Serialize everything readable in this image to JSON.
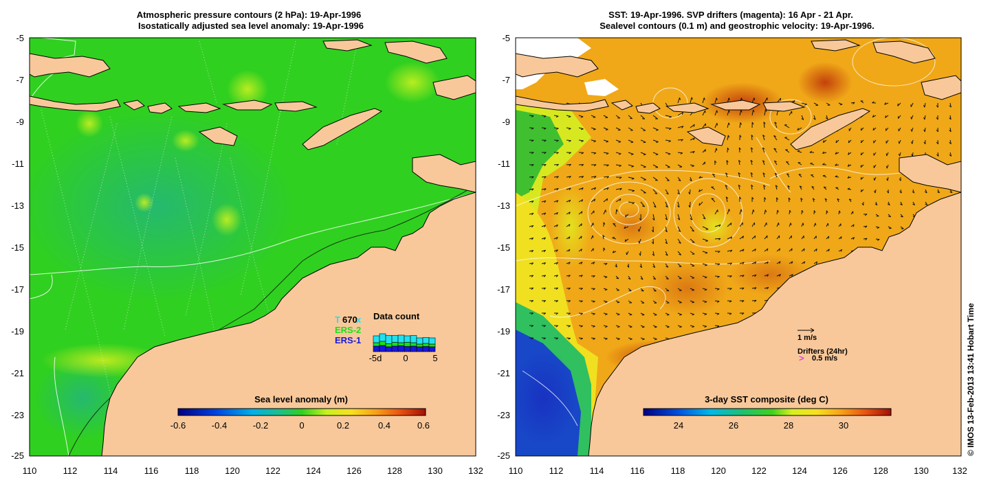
{
  "left_panel": {
    "title_line1": "Atmospheric pressure contours (2 hPa): 19-Apr-1996",
    "title_line2": "Isostatically adjusted sea level anomaly: 19-Apr-1996",
    "x_ticks": [
      "110",
      "112",
      "114",
      "116",
      "118",
      "120",
      "122",
      "124",
      "126",
      "128",
      "130",
      "132"
    ],
    "y_ticks": [
      "-5",
      "-7",
      "-9",
      "-11",
      "-13",
      "-15",
      "-17",
      "-19",
      "-21",
      "-23",
      "-25"
    ],
    "colorbar": {
      "title": "Sea level anomaly (m)",
      "ticks": [
        "-0.6",
        "-0.4",
        "-0.2",
        "0",
        "0.2",
        "0.4",
        "0.6"
      ]
    },
    "data_count": {
      "title": "Data count",
      "value_label": "670",
      "sat_tp_partial": "T",
      "sat_tp_suffix": "x",
      "sat_ers2": "ERS-2",
      "sat_ers1": "ERS-1",
      "axis_left": "-5d",
      "axis_mid": "0",
      "axis_right": "5",
      "colors": {
        "topex": "#22e0f0",
        "ers2": "#18e018",
        "ers1": "#1818d8"
      }
    }
  },
  "right_panel": {
    "title_line1": "SST: 19-Apr-1996. SVP drifters (magenta): 16 Apr - 21 Apr.",
    "title_line2": "Sealevel contours (0.1 m) and geostrophic velocity: 19-Apr-1996.",
    "x_ticks": [
      "110",
      "112",
      "114",
      "116",
      "118",
      "120",
      "122",
      "124",
      "126",
      "128",
      "130",
      "132"
    ],
    "y_ticks": [
      "-5",
      "-7",
      "-9",
      "-11",
      "-13",
      "-15",
      "-17",
      "-19",
      "-21",
      "-23",
      "-25"
    ],
    "colorbar": {
      "title": "3-day SST composite (deg C)",
      "ticks": [
        "24",
        "26",
        "28",
        "30"
      ]
    },
    "velocity_key": "1 m/s",
    "drifter_key_title": "Drifters (24hr)",
    "drifter_key_symbol": ">",
    "drifter_key_value": "0.5 m/s"
  },
  "credit": "© IMOS 13-Feb-2013 13:41 Hobart Time",
  "colors": {
    "land": "#f8c89a",
    "sla_ocean": "#30d020",
    "sst_ocean": "#f0a818",
    "drifter": "#e040e0"
  }
}
